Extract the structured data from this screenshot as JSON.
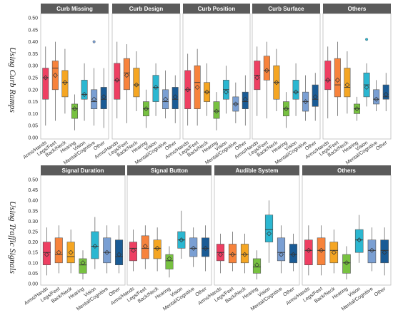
{
  "colors": [
    "#ee3f62",
    "#f7833c",
    "#f5a623",
    "#78c241",
    "#2bb7d1",
    "#7a9fd3",
    "#1a5b95"
  ],
  "chart_data": {
    "type": "box",
    "categories": [
      "Arms/Hands",
      "Legs/Feet",
      "Back/Neck",
      "Hearing",
      "Vision",
      "Mental/Cognitive",
      "Other"
    ],
    "ylim": [
      0,
      0.5
    ],
    "yticks": [
      "0.00",
      "0.05",
      "0.10",
      "0.15",
      "0.20",
      "0.25",
      "0.30",
      "0.35",
      "0.40",
      "0.45",
      "0.50"
    ],
    "rows": [
      {
        "label": "Using Curb Ramps",
        "panels": [
          {
            "title": "Curb Missing",
            "boxes": [
              {
                "min": 0.05,
                "q1": 0.16,
                "median": 0.25,
                "q3": 0.29,
                "max": 0.38,
                "mean": 0.25
              },
              {
                "min": 0.07,
                "q1": 0.2,
                "median": 0.29,
                "q3": 0.32,
                "max": 0.4,
                "mean": 0.26
              },
              {
                "min": 0.1,
                "q1": 0.17,
                "median": 0.23,
                "q3": 0.28,
                "max": 0.37,
                "mean": 0.23
              },
              {
                "min": 0.03,
                "q1": 0.08,
                "median": 0.12,
                "q3": 0.14,
                "max": 0.18,
                "mean": 0.12
              },
              {
                "min": 0.07,
                "q1": 0.16,
                "median": 0.18,
                "q3": 0.24,
                "max": 0.31,
                "mean": 0.18
              },
              {
                "min": 0.05,
                "q1": 0.12,
                "median": 0.15,
                "q3": 0.2,
                "max": 0.29,
                "mean": 0.16,
                "outliers": [
                  0.4
                ]
              },
              {
                "min": 0.04,
                "q1": 0.12,
                "median": 0.16,
                "q3": 0.21,
                "max": 0.29,
                "mean": 0.17
              }
            ]
          },
          {
            "title": "Curb Design",
            "boxes": [
              {
                "min": 0.08,
                "q1": 0.16,
                "median": 0.24,
                "q3": 0.31,
                "max": 0.4,
                "mean": 0.24
              },
              {
                "min": 0.06,
                "q1": 0.2,
                "median": 0.27,
                "q3": 0.33,
                "max": 0.39,
                "mean": 0.26
              },
              {
                "min": 0.11,
                "q1": 0.17,
                "median": 0.22,
                "q3": 0.29,
                "max": 0.36,
                "mean": 0.22
              },
              {
                "min": 0.04,
                "q1": 0.09,
                "median": 0.12,
                "q3": 0.15,
                "max": 0.2,
                "mean": 0.12
              },
              {
                "min": 0.09,
                "q1": 0.15,
                "median": 0.21,
                "q3": 0.26,
                "max": 0.31,
                "mean": 0.21
              },
              {
                "min": 0.08,
                "q1": 0.12,
                "median": 0.15,
                "q3": 0.2,
                "max": 0.28,
                "mean": 0.16
              },
              {
                "min": 0.06,
                "q1": 0.12,
                "median": 0.16,
                "q3": 0.21,
                "max": 0.26,
                "mean": 0.17
              }
            ]
          },
          {
            "title": "Curb Position",
            "boxes": [
              {
                "min": 0.05,
                "q1": 0.12,
                "median": 0.2,
                "q3": 0.28,
                "max": 0.35,
                "mean": 0.2
              },
              {
                "min": 0.05,
                "q1": 0.12,
                "median": 0.23,
                "q3": 0.3,
                "max": 0.37,
                "mean": 0.21
              },
              {
                "min": 0.09,
                "q1": 0.15,
                "median": 0.19,
                "q3": 0.23,
                "max": 0.31,
                "mean": 0.19
              },
              {
                "min": 0.03,
                "q1": 0.08,
                "median": 0.11,
                "q3": 0.15,
                "max": 0.19,
                "mean": 0.11
              },
              {
                "min": 0.1,
                "q1": 0.16,
                "median": 0.2,
                "q3": 0.24,
                "max": 0.3,
                "mean": 0.19
              },
              {
                "min": 0.06,
                "q1": 0.11,
                "median": 0.14,
                "q3": 0.17,
                "max": 0.23,
                "mean": 0.14
              },
              {
                "min": 0.05,
                "q1": 0.12,
                "median": 0.15,
                "q3": 0.19,
                "max": 0.26,
                "mean": 0.16
              }
            ]
          },
          {
            "title": "Curb Surface",
            "boxes": [
              {
                "min": 0.09,
                "q1": 0.2,
                "median": 0.26,
                "q3": 0.32,
                "max": 0.38,
                "mean": 0.25
              },
              {
                "min": 0.08,
                "q1": 0.24,
                "median": 0.28,
                "q3": 0.34,
                "max": 0.4,
                "mean": 0.28
              },
              {
                "min": 0.11,
                "q1": 0.16,
                "median": 0.23,
                "q3": 0.3,
                "max": 0.37,
                "mean": 0.23
              },
              {
                "min": 0.04,
                "q1": 0.09,
                "median": 0.12,
                "q3": 0.15,
                "max": 0.19,
                "mean": 0.12
              },
              {
                "min": 0.09,
                "q1": 0.16,
                "median": 0.19,
                "q3": 0.24,
                "max": 0.31,
                "mean": 0.19
              },
              {
                "min": 0.07,
                "q1": 0.11,
                "median": 0.15,
                "q3": 0.19,
                "max": 0.26,
                "mean": 0.15
              },
              {
                "min": 0.07,
                "q1": 0.13,
                "median": 0.16,
                "q3": 0.22,
                "max": 0.27,
                "mean": 0.17
              }
            ]
          },
          {
            "title": "Others",
            "boxes": [
              {
                "min": 0.08,
                "q1": 0.2,
                "median": 0.24,
                "q3": 0.32,
                "max": 0.38,
                "mean": 0.24
              },
              {
                "min": 0.09,
                "q1": 0.17,
                "median": 0.22,
                "q3": 0.33,
                "max": 0.4,
                "mean": 0.24
              },
              {
                "min": 0.1,
                "q1": 0.17,
                "median": 0.21,
                "q3": 0.29,
                "max": 0.36,
                "mean": 0.22
              },
              {
                "min": 0.07,
                "q1": 0.1,
                "median": 0.12,
                "q3": 0.14,
                "max": 0.17,
                "mean": 0.12
              },
              {
                "min": 0.13,
                "q1": 0.17,
                "median": 0.22,
                "q3": 0.27,
                "max": 0.31,
                "mean": 0.21,
                "outliers": [
                  0.41
                ]
              },
              {
                "min": 0.11,
                "q1": 0.14,
                "median": 0.16,
                "q3": 0.2,
                "max": 0.24,
                "mean": 0.16
              },
              {
                "min": 0.11,
                "q1": 0.16,
                "median": 0.17,
                "q3": 0.22,
                "max": 0.27,
                "mean": 0.18
              }
            ]
          }
        ]
      },
      {
        "label": "Using Traffic Signals",
        "panels": [
          {
            "title": "Signal Duration",
            "boxes": [
              {
                "min": 0.04,
                "q1": 0.09,
                "median": 0.15,
                "q3": 0.2,
                "max": 0.27,
                "mean": 0.14
              },
              {
                "min": 0.05,
                "q1": 0.1,
                "median": 0.14,
                "q3": 0.22,
                "max": 0.28,
                "mean": 0.15
              },
              {
                "min": 0.05,
                "q1": 0.1,
                "median": 0.13,
                "q3": 0.2,
                "max": 0.26,
                "mean": 0.15
              },
              {
                "min": 0.02,
                "q1": 0.05,
                "median": 0.09,
                "q3": 0.12,
                "max": 0.16,
                "mean": 0.1
              },
              {
                "min": 0.07,
                "q1": 0.12,
                "median": 0.18,
                "q3": 0.25,
                "max": 0.32,
                "mean": 0.18
              },
              {
                "min": 0.05,
                "q1": 0.1,
                "median": 0.15,
                "q3": 0.22,
                "max": 0.28,
                "mean": 0.15
              },
              {
                "min": 0.05,
                "q1": 0.09,
                "median": 0.13,
                "q3": 0.21,
                "max": 0.28,
                "mean": 0.14
              }
            ]
          },
          {
            "title": "Signal Button",
            "boxes": [
              {
                "min": 0.06,
                "q1": 0.11,
                "median": 0.17,
                "q3": 0.2,
                "max": 0.26,
                "mean": 0.16
              },
              {
                "min": 0.07,
                "q1": 0.12,
                "median": 0.17,
                "q3": 0.23,
                "max": 0.28,
                "mean": 0.18
              },
              {
                "min": 0.06,
                "q1": 0.12,
                "median": 0.17,
                "q3": 0.21,
                "max": 0.27,
                "mean": 0.17
              },
              {
                "min": 0.03,
                "q1": 0.07,
                "median": 0.11,
                "q3": 0.14,
                "max": 0.18,
                "mean": 0.12
              },
              {
                "min": 0.12,
                "q1": 0.17,
                "median": 0.21,
                "q3": 0.25,
                "max": 0.35,
                "mean": 0.21
              },
              {
                "min": 0.08,
                "q1": 0.13,
                "median": 0.17,
                "q3": 0.22,
                "max": 0.27,
                "mean": 0.17
              },
              {
                "min": 0.06,
                "q1": 0.13,
                "median": 0.17,
                "q3": 0.22,
                "max": 0.28,
                "mean": 0.17
              }
            ]
          },
          {
            "title": "Audible System",
            "boxes": [
              {
                "min": 0.05,
                "q1": 0.11,
                "median": 0.15,
                "q3": 0.19,
                "max": 0.24,
                "mean": 0.14
              },
              {
                "min": 0.06,
                "q1": 0.1,
                "median": 0.14,
                "q3": 0.19,
                "max": 0.25,
                "mean": 0.14
              },
              {
                "min": 0.05,
                "q1": 0.1,
                "median": 0.14,
                "q3": 0.19,
                "max": 0.24,
                "mean": 0.14
              },
              {
                "min": 0.02,
                "q1": 0.05,
                "median": 0.08,
                "q3": 0.12,
                "max": 0.16,
                "mean": 0.09
              },
              {
                "min": 0.1,
                "q1": 0.2,
                "median": 0.26,
                "q3": 0.33,
                "max": 0.4,
                "mean": 0.24
              },
              {
                "min": 0.05,
                "q1": 0.11,
                "median": 0.15,
                "q3": 0.22,
                "max": 0.28,
                "mean": 0.14
              },
              {
                "min": 0.06,
                "q1": 0.1,
                "median": 0.14,
                "q3": 0.19,
                "max": 0.24,
                "mean": 0.14
              }
            ]
          },
          {
            "title": "Others",
            "boxes": [
              {
                "min": 0.04,
                "q1": 0.09,
                "median": 0.16,
                "q3": 0.21,
                "max": 0.28,
                "mean": 0.16
              },
              {
                "min": 0.04,
                "q1": 0.09,
                "median": 0.16,
                "q3": 0.22,
                "max": 0.28,
                "mean": 0.16
              },
              {
                "min": 0.05,
                "q1": 0.1,
                "median": 0.16,
                "q3": 0.2,
                "max": 0.26,
                "mean": 0.15
              },
              {
                "min": 0.02,
                "q1": 0.05,
                "median": 0.1,
                "q3": 0.14,
                "max": 0.18,
                "mean": 0.1
              },
              {
                "min": 0.1,
                "q1": 0.15,
                "median": 0.21,
                "q3": 0.26,
                "max": 0.33,
                "mean": 0.21
              },
              {
                "min": 0.06,
                "q1": 0.1,
                "median": 0.16,
                "q3": 0.21,
                "max": 0.27,
                "mean": 0.16
              },
              {
                "min": 0.04,
                "q1": 0.1,
                "median": 0.16,
                "q3": 0.21,
                "max": 0.27,
                "mean": 0.15
              }
            ]
          }
        ]
      }
    ]
  }
}
